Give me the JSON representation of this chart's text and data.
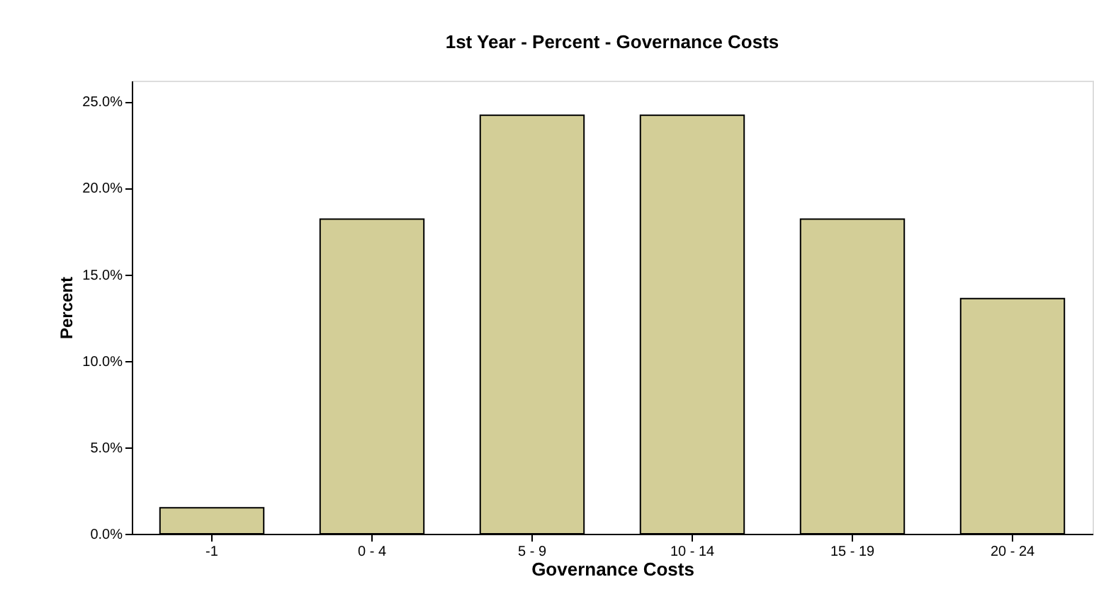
{
  "chart_data": {
    "type": "bar",
    "title": "1st Year - Percent - Governance Costs",
    "xlabel": "Governance Costs",
    "ylabel": "Percent",
    "categories": [
      "-1",
      "0 - 4",
      "5 - 9",
      "10 - 14",
      "15 - 19",
      "20 - 24"
    ],
    "values": [
      1.5,
      18.2,
      24.2,
      24.2,
      18.2,
      13.6
    ],
    "color": "#d3ce97",
    "ylim": [
      0,
      26.2
    ],
    "yticks": [
      {
        "value": 0,
        "label": "0.0%"
      },
      {
        "value": 5,
        "label": "5.0%"
      },
      {
        "value": 10,
        "label": "10.0%"
      },
      {
        "value": 15,
        "label": "15.0%"
      },
      {
        "value": 20,
        "label": "20.0%"
      },
      {
        "value": 25,
        "label": "25.0%"
      }
    ],
    "grid": false
  }
}
